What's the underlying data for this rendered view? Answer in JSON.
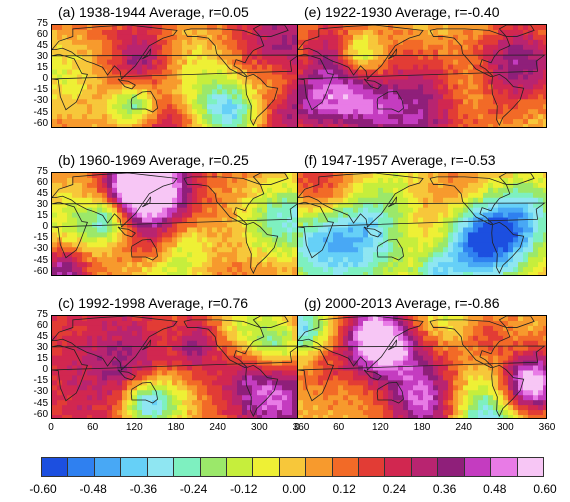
{
  "panels": [
    {
      "id": "a",
      "title": "(a) 1938-1944 Average, r=0.05",
      "bias": 0.22,
      "seed": 3
    },
    {
      "id": "b",
      "title": "(b) 1960-1969 Average, r=0.25",
      "bias": 0.12,
      "seed": 7
    },
    {
      "id": "c",
      "title": "(c) 1992-1998 Average, r=0.76",
      "bias": 0.22,
      "seed": 11
    },
    {
      "id": "e",
      "title": "(e) 1922-1930 Average, r=-0.40",
      "bias": -0.02,
      "seed": 19
    },
    {
      "id": "f",
      "title": "(f) 1947-1957 Average, r=-0.53",
      "bias": 0.0,
      "seed": 23
    },
    {
      "id": "g",
      "title": "(g) 2000-2013 Average, r=-0.86",
      "bias": 0.05,
      "seed": 29
    }
  ],
  "lat_ticks": [
    "75",
    "60",
    "45",
    "30",
    "15",
    "0",
    "-15",
    "-30",
    "-45",
    "-60"
  ],
  "lon_ticks": [
    "0",
    "60",
    "120",
    "180",
    "240",
    "300",
    "360"
  ],
  "colorbar": {
    "labels": [
      "-0.60",
      "-0.48",
      "-0.36",
      "-0.24",
      "-0.12",
      "0.00",
      "0.12",
      "0.24",
      "0.36",
      "0.48",
      "0.60"
    ],
    "colors": [
      "#1c4fe0",
      "#2f80f0",
      "#48a8f5",
      "#66d0f7",
      "#8fe6f2",
      "#7ef0c0",
      "#9be86a",
      "#c6ee3c",
      "#eef035",
      "#f7c73a",
      "#f79a2d",
      "#f26a27",
      "#e23c35",
      "#d12750",
      "#b82470",
      "#8f1f7a",
      "#c43cc0",
      "#e87be6",
      "#f7c6f5"
    ]
  }
}
